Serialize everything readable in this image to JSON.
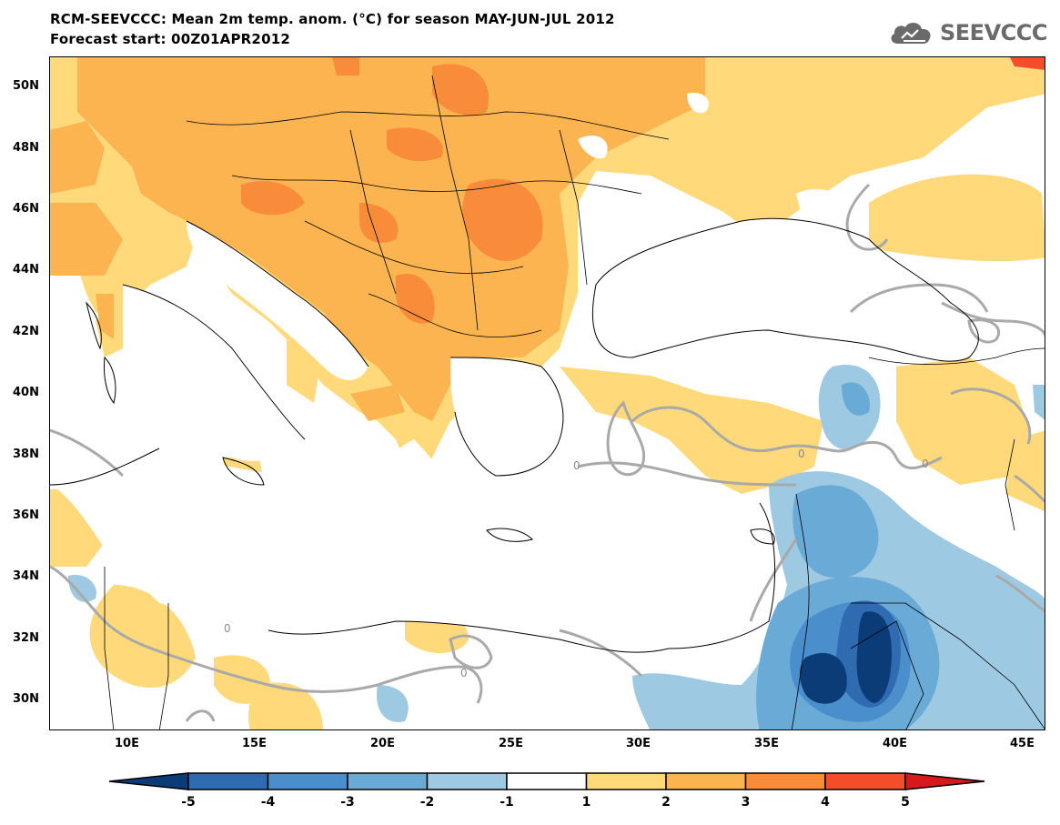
{
  "title": {
    "line1": "RCM-SEEVCCC: Mean 2m temp. anom. (°C) for season MAY-JUN-JUL 2012",
    "line2": "Forecast start: 00Z01APR2012"
  },
  "logo": {
    "text": "SEEVCCC",
    "icon": "cloud-icon"
  },
  "map": {
    "lon_range": [
      7,
      46
    ],
    "lat_range": [
      29,
      51
    ],
    "lat_ticks": [
      "50N",
      "48N",
      "46N",
      "44N",
      "42N",
      "40N",
      "38N",
      "36N",
      "34N",
      "32N",
      "30N"
    ],
    "lon_ticks": [
      "10E",
      "15E",
      "20E",
      "25E",
      "30E",
      "35E",
      "40E",
      "45E"
    ],
    "contour_labels": [
      "0",
      "0",
      "0",
      "0",
      "0"
    ]
  },
  "colorbar": {
    "labels": [
      "-5",
      "-4",
      "-3",
      "-2",
      "-1",
      "1",
      "2",
      "3",
      "4",
      "5"
    ],
    "colors": [
      "#0b3c78",
      "#2f6bb0",
      "#4a8fcb",
      "#6aaad6",
      "#9ec9e2",
      "#ffffff",
      "#ffd97a",
      "#fbb450",
      "#f98c3a",
      "#f44d2a",
      "#d7191c"
    ]
  }
}
